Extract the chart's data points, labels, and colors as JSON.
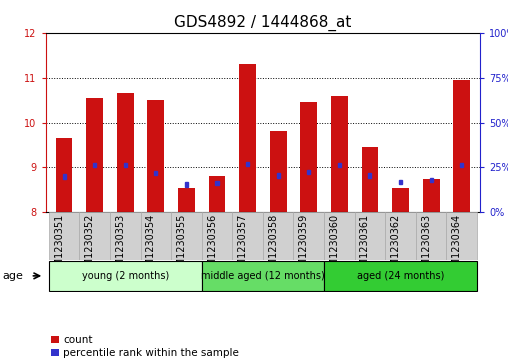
{
  "title": "GDS4892 / 1444868_at",
  "samples": [
    "GSM1230351",
    "GSM1230352",
    "GSM1230353",
    "GSM1230354",
    "GSM1230355",
    "GSM1230356",
    "GSM1230357",
    "GSM1230358",
    "GSM1230359",
    "GSM1230360",
    "GSM1230361",
    "GSM1230362",
    "GSM1230363",
    "GSM1230364"
  ],
  "count_values": [
    9.65,
    10.55,
    10.65,
    10.5,
    8.55,
    8.8,
    11.3,
    9.8,
    10.45,
    10.6,
    9.45,
    8.55,
    8.75,
    10.95
  ],
  "percentile_values": [
    8.8,
    9.05,
    9.05,
    8.88,
    8.62,
    8.65,
    9.08,
    8.82,
    8.9,
    9.05,
    8.82,
    8.68,
    8.72,
    9.05
  ],
  "ylim_left": [
    8,
    12
  ],
  "ylim_right": [
    0,
    100
  ],
  "yticks_left": [
    8,
    9,
    10,
    11,
    12
  ],
  "yticks_right": [
    0,
    25,
    50,
    75,
    100
  ],
  "bar_color": "#cc1111",
  "percentile_color": "#3333cc",
  "bar_width": 0.55,
  "groups": [
    {
      "label": "young (2 months)",
      "start": 0,
      "end": 5,
      "color": "#ccffcc"
    },
    {
      "label": "middle aged (12 months)",
      "start": 5,
      "end": 9,
      "color": "#66dd66"
    },
    {
      "label": "aged (24 months)",
      "start": 9,
      "end": 14,
      "color": "#33cc33"
    }
  ],
  "age_label": "age",
  "legend_count": "count",
  "legend_percentile": "percentile rank within the sample",
  "title_fontsize": 11,
  "tick_fontsize": 7,
  "label_color_left": "#cc1111",
  "label_color_right": "#2222cc",
  "xtick_bg": "#d0d0d0",
  "xtick_border": "#aaaaaa"
}
